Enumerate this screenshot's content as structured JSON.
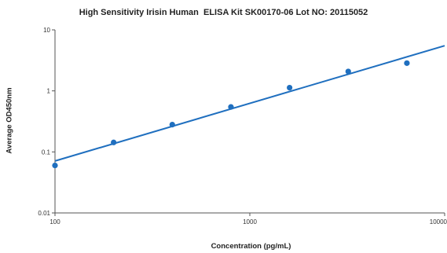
{
  "chart_data": {
    "type": "scatter",
    "title": "High Sensitivity Irisin Human  ELISA Kit SK00170-06 Lot NO: 20115052",
    "xlabel": "Concentration (pg/mL)",
    "ylabel": "Average OD450nm",
    "x_scale": "log",
    "y_scale": "log",
    "xlim": [
      100,
      10000
    ],
    "ylim": [
      0.01,
      10
    ],
    "x_ticks": [
      {
        "value": 100,
        "label": "100"
      },
      {
        "value": 1000,
        "label": "1000"
      },
      {
        "value": 10000,
        "label": "10000"
      }
    ],
    "y_ticks": [
      {
        "value": 0.01,
        "label": "0.01"
      },
      {
        "value": 0.1,
        "label": "0.1"
      },
      {
        "value": 1,
        "label": "1"
      },
      {
        "value": 10,
        "label": "10"
      }
    ],
    "grid": false,
    "legend": "none",
    "series": [
      {
        "points": [
          {
            "x": 100,
            "y": 0.06
          },
          {
            "x": 200,
            "y": 0.143
          },
          {
            "x": 400,
            "y": 0.28
          },
          {
            "x": 800,
            "y": 0.545
          },
          {
            "x": 1600,
            "y": 1.13
          },
          {
            "x": 3200,
            "y": 2.08
          },
          {
            "x": 6400,
            "y": 2.85
          }
        ],
        "fit_line": {
          "x": [
            100,
            10000
          ],
          "y": [
            0.071,
            5.5
          ]
        },
        "color": "#1f6fbf"
      }
    ]
  }
}
